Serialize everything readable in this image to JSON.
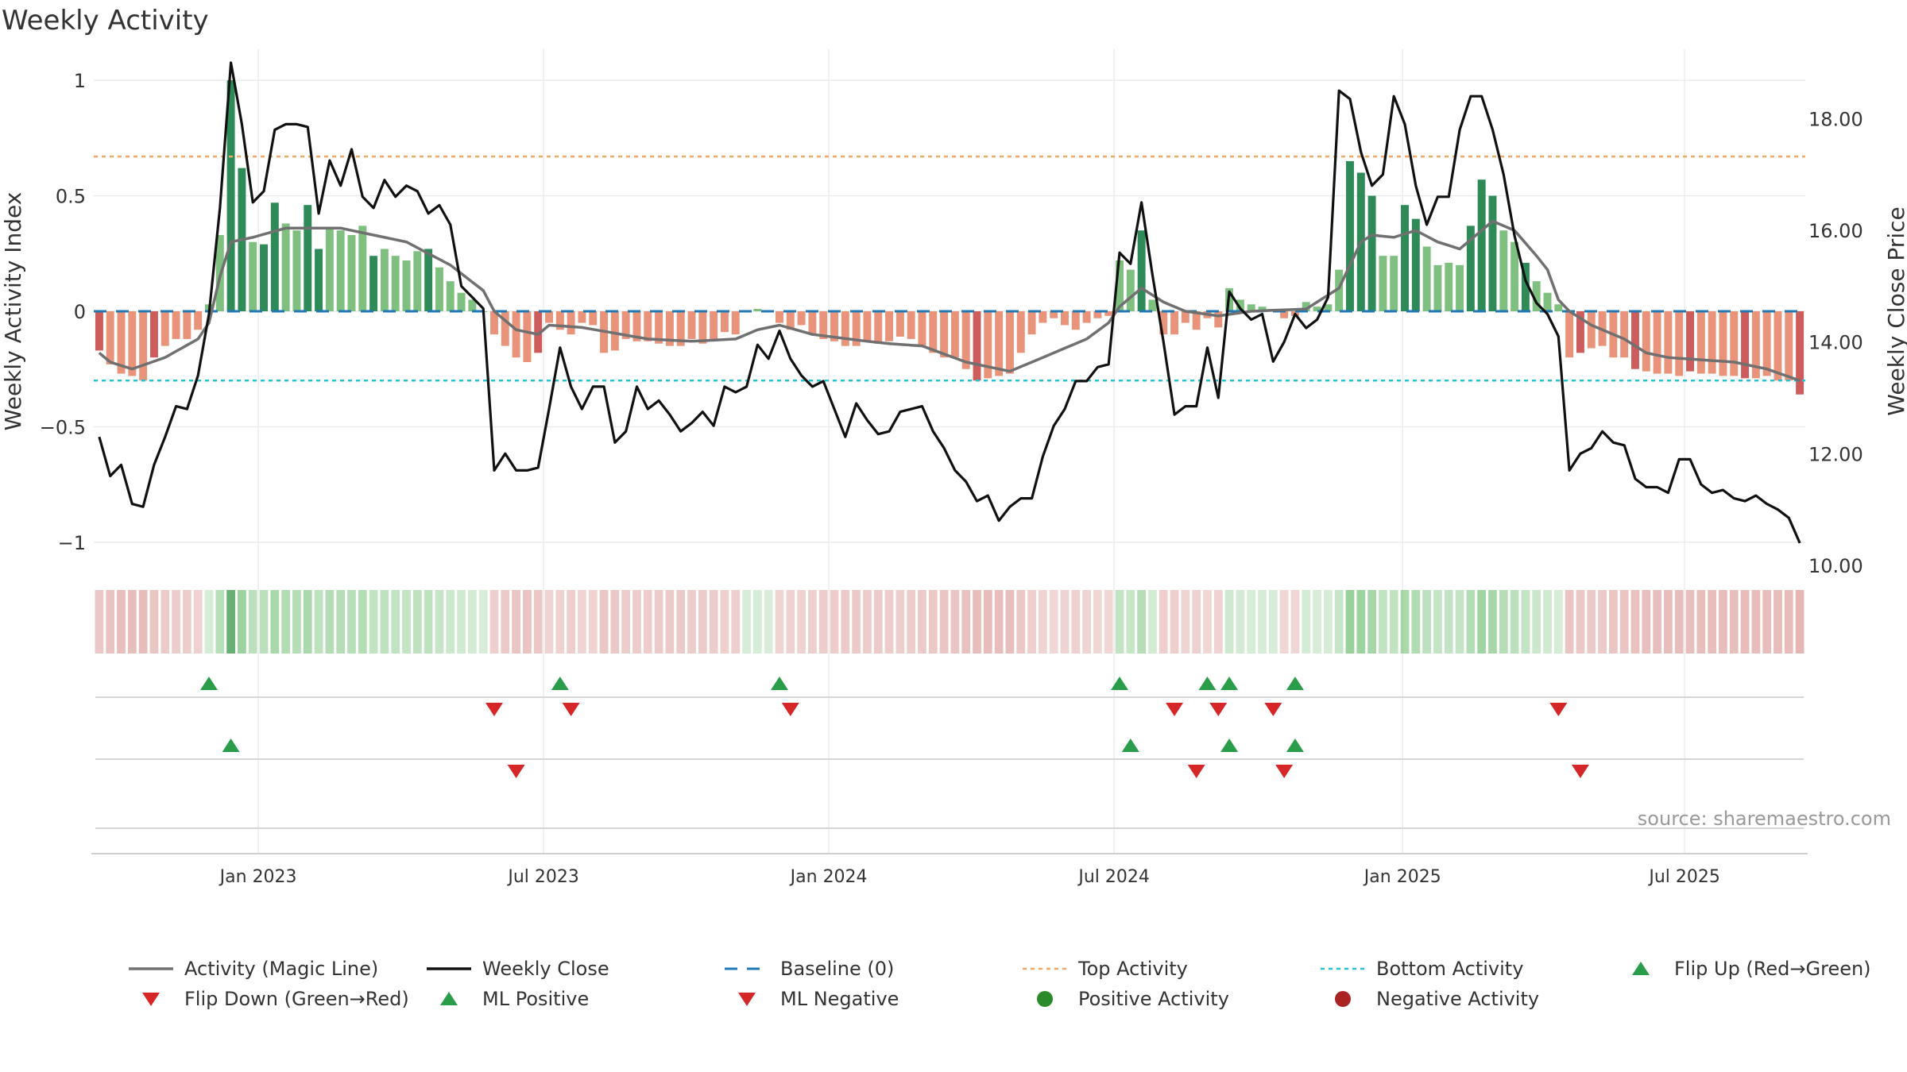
{
  "title": "Weekly Activity",
  "source": "source: sharemaestro.com",
  "colors": {
    "pos_light": "#7fbf7f",
    "pos_dark": "#2e8b57",
    "neg_light": "#e8937a",
    "neg_dark": "#cd5c5c",
    "magic": "#707070",
    "close": "#111111",
    "baseline": "#1f77b4",
    "top": "#f0a868",
    "bottom": "#22c4d4",
    "up": "#2a9d4a",
    "down": "#d62728",
    "pos_dot": "#2a8a2a",
    "neg_dot": "#aa2222"
  },
  "chart_data": {
    "type": "bar",
    "title": "Weekly Activity",
    "ylabel": "Weekly Activity Index",
    "y2label": "Weekly Close Price",
    "ylim": [
      -1.1,
      1.1
    ],
    "y2lim": [
      10.0,
      19.1
    ],
    "yticks": [
      1,
      0.5,
      0,
      -0.5,
      -1
    ],
    "ytick_labels": [
      "1",
      "0.5",
      "0",
      "−0.5",
      "−1"
    ],
    "y2ticks": [
      18.0,
      16.0,
      14.0,
      12.0,
      10.0
    ],
    "y2tick_labels": [
      "18.00",
      "16.00",
      "14.00",
      "12.00",
      "10.00"
    ],
    "x_range": [
      0,
      156
    ],
    "x_ticks": [
      {
        "label": "Jan 2023",
        "week": 15
      },
      {
        "label": "Jul 2023",
        "week": 41
      },
      {
        "label": "Jan 2024",
        "week": 67
      },
      {
        "label": "Jul 2024",
        "week": 93
      },
      {
        "label": "Jan 2025",
        "week": 119.3
      },
      {
        "label": "Jul 2025",
        "week": 145
      }
    ],
    "top_activity": 0.67,
    "bottom_activity": -0.3,
    "baseline": 0,
    "activity_keyframes": [
      [
        0,
        -0.17
      ],
      [
        1,
        -0.23
      ],
      [
        2,
        -0.27
      ],
      [
        3,
        -0.28
      ],
      [
        4,
        -0.3
      ],
      [
        5,
        -0.2
      ],
      [
        6,
        -0.15
      ],
      [
        7,
        -0.12
      ],
      [
        8,
        -0.12
      ],
      [
        9,
        -0.08
      ],
      [
        10,
        0.03
      ],
      [
        11,
        0.33
      ],
      [
        12,
        1.0
      ],
      [
        13,
        0.62
      ],
      [
        14,
        0.3
      ],
      [
        15,
        0.29
      ],
      [
        16,
        0.47
      ],
      [
        17,
        0.38
      ],
      [
        18,
        0.35
      ],
      [
        19,
        0.46
      ],
      [
        20,
        0.27
      ],
      [
        21,
        0.36
      ],
      [
        22,
        0.35
      ],
      [
        23,
        0.33
      ],
      [
        24,
        0.37
      ],
      [
        25,
        0.24
      ],
      [
        26,
        0.27
      ],
      [
        27,
        0.24
      ],
      [
        28,
        0.22
      ],
      [
        29,
        0.26
      ],
      [
        30,
        0.27
      ],
      [
        31,
        0.19
      ],
      [
        32,
        0.13
      ],
      [
        33,
        0.08
      ],
      [
        34,
        0.05
      ],
      [
        35,
        0.0
      ],
      [
        36,
        -0.1
      ],
      [
        37,
        -0.15
      ],
      [
        38,
        -0.2
      ],
      [
        39,
        -0.22
      ],
      [
        40,
        -0.18
      ],
      [
        41,
        -0.05
      ],
      [
        42,
        -0.08
      ],
      [
        43,
        -0.1
      ],
      [
        44,
        -0.05
      ],
      [
        45,
        -0.06
      ],
      [
        46,
        -0.18
      ],
      [
        47,
        -0.17
      ],
      [
        48,
        -0.12
      ],
      [
        49,
        -0.13
      ],
      [
        50,
        -0.13
      ],
      [
        51,
        -0.14
      ],
      [
        52,
        -0.15
      ],
      [
        53,
        -0.15
      ],
      [
        54,
        -0.12
      ],
      [
        55,
        -0.14
      ],
      [
        56,
        -0.12
      ],
      [
        57,
        -0.09
      ],
      [
        58,
        -0.1
      ],
      [
        59,
        0.0
      ],
      [
        60,
        0.01
      ],
      [
        61,
        0.0
      ],
      [
        62,
        -0.05
      ],
      [
        63,
        -0.08
      ],
      [
        64,
        -0.06
      ],
      [
        65,
        -0.1
      ],
      [
        66,
        -0.12
      ],
      [
        67,
        -0.13
      ],
      [
        68,
        -0.15
      ],
      [
        69,
        -0.15
      ],
      [
        70,
        -0.13
      ],
      [
        71,
        -0.14
      ],
      [
        72,
        -0.13
      ],
      [
        73,
        -0.11
      ],
      [
        74,
        -0.12
      ],
      [
        75,
        -0.15
      ],
      [
        76,
        -0.18
      ],
      [
        77,
        -0.2
      ],
      [
        78,
        -0.2
      ],
      [
        79,
        -0.25
      ],
      [
        80,
        -0.3
      ],
      [
        81,
        -0.29
      ],
      [
        82,
        -0.28
      ],
      [
        83,
        -0.27
      ],
      [
        84,
        -0.18
      ],
      [
        85,
        -0.1
      ],
      [
        86,
        -0.05
      ],
      [
        87,
        -0.03
      ],
      [
        88,
        -0.06
      ],
      [
        89,
        -0.08
      ],
      [
        90,
        -0.05
      ],
      [
        91,
        -0.03
      ],
      [
        92,
        -0.02
      ],
      [
        93,
        0.22
      ],
      [
        94,
        0.18
      ],
      [
        95,
        0.35
      ],
      [
        96,
        0.05
      ],
      [
        97,
        -0.1
      ],
      [
        98,
        -0.1
      ],
      [
        99,
        -0.05
      ],
      [
        100,
        -0.08
      ],
      [
        101,
        -0.03
      ],
      [
        102,
        -0.07
      ],
      [
        103,
        0.1
      ],
      [
        104,
        0.05
      ],
      [
        105,
        0.03
      ],
      [
        106,
        0.02
      ],
      [
        107,
        0.01
      ],
      [
        108,
        -0.03
      ],
      [
        109,
        -0.02
      ],
      [
        110,
        0.04
      ],
      [
        111,
        0.02
      ],
      [
        112,
        0.03
      ],
      [
        113,
        0.18
      ],
      [
        114,
        0.65
      ],
      [
        115,
        0.6
      ],
      [
        116,
        0.5
      ],
      [
        117,
        0.24
      ],
      [
        118,
        0.24
      ],
      [
        119,
        0.46
      ],
      [
        120,
        0.4
      ],
      [
        121,
        0.28
      ],
      [
        122,
        0.2
      ],
      [
        123,
        0.21
      ],
      [
        124,
        0.2
      ],
      [
        125,
        0.37
      ],
      [
        126,
        0.57
      ],
      [
        127,
        0.5
      ],
      [
        128,
        0.35
      ],
      [
        129,
        0.3
      ],
      [
        130,
        0.21
      ],
      [
        131,
        0.13
      ],
      [
        132,
        0.08
      ],
      [
        133,
        0.03
      ],
      [
        134,
        -0.2
      ],
      [
        135,
        -0.18
      ],
      [
        136,
        -0.16
      ],
      [
        137,
        -0.15
      ],
      [
        138,
        -0.2
      ],
      [
        139,
        -0.2
      ],
      [
        140,
        -0.25
      ],
      [
        141,
        -0.26
      ],
      [
        142,
        -0.27
      ],
      [
        143,
        -0.27
      ],
      [
        144,
        -0.28
      ],
      [
        145,
        -0.26
      ],
      [
        146,
        -0.27
      ],
      [
        147,
        -0.27
      ],
      [
        148,
        -0.28
      ],
      [
        149,
        -0.28
      ],
      [
        150,
        -0.29
      ],
      [
        151,
        -0.29
      ],
      [
        152,
        -0.28
      ],
      [
        153,
        -0.3
      ],
      [
        154,
        -0.3
      ],
      [
        155,
        -0.36
      ]
    ],
    "magic_line_keyframes": [
      [
        0,
        -0.18
      ],
      [
        1,
        -0.22
      ],
      [
        3,
        -0.25
      ],
      [
        6,
        -0.2
      ],
      [
        9,
        -0.12
      ],
      [
        10,
        -0.05
      ],
      [
        11,
        0.15
      ],
      [
        12,
        0.3
      ],
      [
        14,
        0.32
      ],
      [
        17,
        0.36
      ],
      [
        19,
        0.36
      ],
      [
        22,
        0.36
      ],
      [
        25,
        0.33
      ],
      [
        28,
        0.3
      ],
      [
        32,
        0.2
      ],
      [
        35,
        0.09
      ],
      [
        36,
        0.0
      ],
      [
        38,
        -0.08
      ],
      [
        40,
        -0.1
      ],
      [
        41,
        -0.06
      ],
      [
        44,
        -0.07
      ],
      [
        50,
        -0.12
      ],
      [
        54,
        -0.13
      ],
      [
        58,
        -0.12
      ],
      [
        60,
        -0.08
      ],
      [
        62,
        -0.06
      ],
      [
        65,
        -0.1
      ],
      [
        70,
        -0.13
      ],
      [
        72,
        -0.14
      ],
      [
        75,
        -0.15
      ],
      [
        79,
        -0.22
      ],
      [
        83,
        -0.26
      ],
      [
        86,
        -0.2
      ],
      [
        90,
        -0.12
      ],
      [
        92,
        -0.05
      ],
      [
        93,
        0.02
      ],
      [
        95,
        0.1
      ],
      [
        97,
        0.04
      ],
      [
        99,
        0.0
      ],
      [
        102,
        -0.02
      ],
      [
        105,
        0.0
      ],
      [
        110,
        0.01
      ],
      [
        113,
        0.1
      ],
      [
        115,
        0.3
      ],
      [
        116,
        0.33
      ],
      [
        118,
        0.32
      ],
      [
        120,
        0.35
      ],
      [
        122,
        0.3
      ],
      [
        124,
        0.27
      ],
      [
        126,
        0.35
      ],
      [
        127,
        0.39
      ],
      [
        129,
        0.35
      ],
      [
        131,
        0.24
      ],
      [
        132,
        0.18
      ],
      [
        133,
        0.05
      ],
      [
        134,
        0.0
      ],
      [
        136,
        -0.06
      ],
      [
        139,
        -0.12
      ],
      [
        141,
        -0.18
      ],
      [
        143,
        -0.2
      ],
      [
        146,
        -0.21
      ],
      [
        149,
        -0.22
      ],
      [
        152,
        -0.25
      ],
      [
        155,
        -0.3
      ]
    ],
    "weekly_close_keyframes": [
      [
        0,
        12.3
      ],
      [
        1,
        11.6
      ],
      [
        2,
        11.8
      ],
      [
        3,
        11.1
      ],
      [
        4,
        11.05
      ],
      [
        5,
        11.8
      ],
      [
        6,
        12.3
      ],
      [
        7,
        12.85
      ],
      [
        8,
        12.8
      ],
      [
        9,
        13.4
      ],
      [
        10,
        14.5
      ],
      [
        11,
        16.4
      ],
      [
        12,
        19.0
      ],
      [
        13,
        17.9
      ],
      [
        14,
        16.5
      ],
      [
        15,
        16.7
      ],
      [
        16,
        17.8
      ],
      [
        17,
        17.9
      ],
      [
        18,
        17.9
      ],
      [
        19,
        17.85
      ],
      [
        20,
        16.3
      ],
      [
        21,
        17.25
      ],
      [
        22,
        16.8
      ],
      [
        23,
        17.45
      ],
      [
        24,
        16.6
      ],
      [
        25,
        16.4
      ],
      [
        26,
        16.9
      ],
      [
        27,
        16.6
      ],
      [
        28,
        16.8
      ],
      [
        29,
        16.7
      ],
      [
        30,
        16.3
      ],
      [
        31,
        16.45
      ],
      [
        32,
        16.1
      ],
      [
        33,
        15.0
      ],
      [
        34,
        14.8
      ],
      [
        35,
        14.6
      ],
      [
        36,
        11.7
      ],
      [
        37,
        12.0
      ],
      [
        38,
        11.7
      ],
      [
        39,
        11.7
      ],
      [
        40,
        11.75
      ],
      [
        41,
        12.8
      ],
      [
        42,
        13.9
      ],
      [
        43,
        13.2
      ],
      [
        44,
        12.8
      ],
      [
        45,
        13.2
      ],
      [
        46,
        13.2
      ],
      [
        47,
        12.2
      ],
      [
        48,
        12.4
      ],
      [
        49,
        13.2
      ],
      [
        50,
        12.8
      ],
      [
        51,
        12.95
      ],
      [
        52,
        12.7
      ],
      [
        53,
        12.4
      ],
      [
        54,
        12.55
      ],
      [
        55,
        12.75
      ],
      [
        56,
        12.5
      ],
      [
        57,
        13.2
      ],
      [
        58,
        13.1
      ],
      [
        59,
        13.2
      ],
      [
        60,
        13.95
      ],
      [
        61,
        13.7
      ],
      [
        62,
        14.2
      ],
      [
        63,
        13.7
      ],
      [
        64,
        13.4
      ],
      [
        65,
        13.2
      ],
      [
        66,
        13.3
      ],
      [
        67,
        12.8
      ],
      [
        68,
        12.3
      ],
      [
        69,
        12.9
      ],
      [
        70,
        12.6
      ],
      [
        71,
        12.35
      ],
      [
        72,
        12.4
      ],
      [
        73,
        12.75
      ],
      [
        74,
        12.8
      ],
      [
        75,
        12.85
      ],
      [
        76,
        12.4
      ],
      [
        77,
        12.1
      ],
      [
        78,
        11.7
      ],
      [
        79,
        11.5
      ],
      [
        80,
        11.15
      ],
      [
        81,
        11.25
      ],
      [
        82,
        10.8
      ],
      [
        83,
        11.05
      ],
      [
        84,
        11.2
      ],
      [
        85,
        11.2
      ],
      [
        86,
        11.95
      ],
      [
        87,
        12.5
      ],
      [
        88,
        12.8
      ],
      [
        89,
        13.3
      ],
      [
        90,
        13.3
      ],
      [
        91,
        13.55
      ],
      [
        92,
        13.6
      ],
      [
        93,
        15.6
      ],
      [
        94,
        15.4
      ],
      [
        95,
        16.5
      ],
      [
        96,
        15.2
      ],
      [
        97,
        14.0
      ],
      [
        98,
        12.7
      ],
      [
        99,
        12.85
      ],
      [
        100,
        12.85
      ],
      [
        101,
        13.9
      ],
      [
        102,
        13.0
      ],
      [
        103,
        14.9
      ],
      [
        104,
        14.6
      ],
      [
        105,
        14.4
      ],
      [
        106,
        14.5
      ],
      [
        107,
        13.65
      ],
      [
        108,
        14.0
      ],
      [
        109,
        14.5
      ],
      [
        110,
        14.25
      ],
      [
        111,
        14.4
      ],
      [
        112,
        14.8
      ],
      [
        113,
        18.5
      ],
      [
        114,
        18.35
      ],
      [
        115,
        17.4
      ],
      [
        116,
        16.8
      ],
      [
        117,
        17.0
      ],
      [
        118,
        18.4
      ],
      [
        119,
        17.9
      ],
      [
        120,
        16.8
      ],
      [
        121,
        16.1
      ],
      [
        122,
        16.6
      ],
      [
        123,
        16.6
      ],
      [
        124,
        17.8
      ],
      [
        125,
        18.4
      ],
      [
        126,
        18.4
      ],
      [
        127,
        17.8
      ],
      [
        128,
        17.0
      ],
      [
        129,
        15.9
      ],
      [
        130,
        15.1
      ],
      [
        131,
        14.7
      ],
      [
        132,
        14.5
      ],
      [
        133,
        14.1
      ],
      [
        134,
        11.7
      ],
      [
        135,
        12.0
      ],
      [
        136,
        12.1
      ],
      [
        137,
        12.4
      ],
      [
        138,
        12.2
      ],
      [
        139,
        12.15
      ],
      [
        140,
        11.55
      ],
      [
        141,
        11.4
      ],
      [
        142,
        11.4
      ],
      [
        143,
        11.3
      ],
      [
        144,
        11.9
      ],
      [
        145,
        11.9
      ],
      [
        146,
        11.45
      ],
      [
        147,
        11.3
      ],
      [
        148,
        11.35
      ],
      [
        149,
        11.2
      ],
      [
        150,
        11.15
      ],
      [
        151,
        11.25
      ],
      [
        152,
        11.1
      ],
      [
        153,
        11.0
      ],
      [
        154,
        10.85
      ],
      [
        155,
        10.4
      ]
    ],
    "flip_up_weeks": [
      10,
      42,
      62,
      93,
      101,
      103,
      109
    ],
    "flip_down_weeks": [
      36,
      43,
      63,
      98,
      102,
      107,
      133
    ],
    "ml_positive_weeks": [
      12,
      94,
      103,
      109
    ],
    "ml_negative_weeks": [
      38,
      100,
      108,
      135
    ],
    "legend": [
      "Activity (Magic Line)",
      "Weekly Close",
      "Baseline (0)",
      "Top Activity",
      "Bottom Activity",
      "Flip Up (Red→Green)",
      "Flip Down (Green→Red)",
      "ML Positive",
      "ML Negative",
      "Positive Activity",
      "Negative Activity"
    ]
  }
}
